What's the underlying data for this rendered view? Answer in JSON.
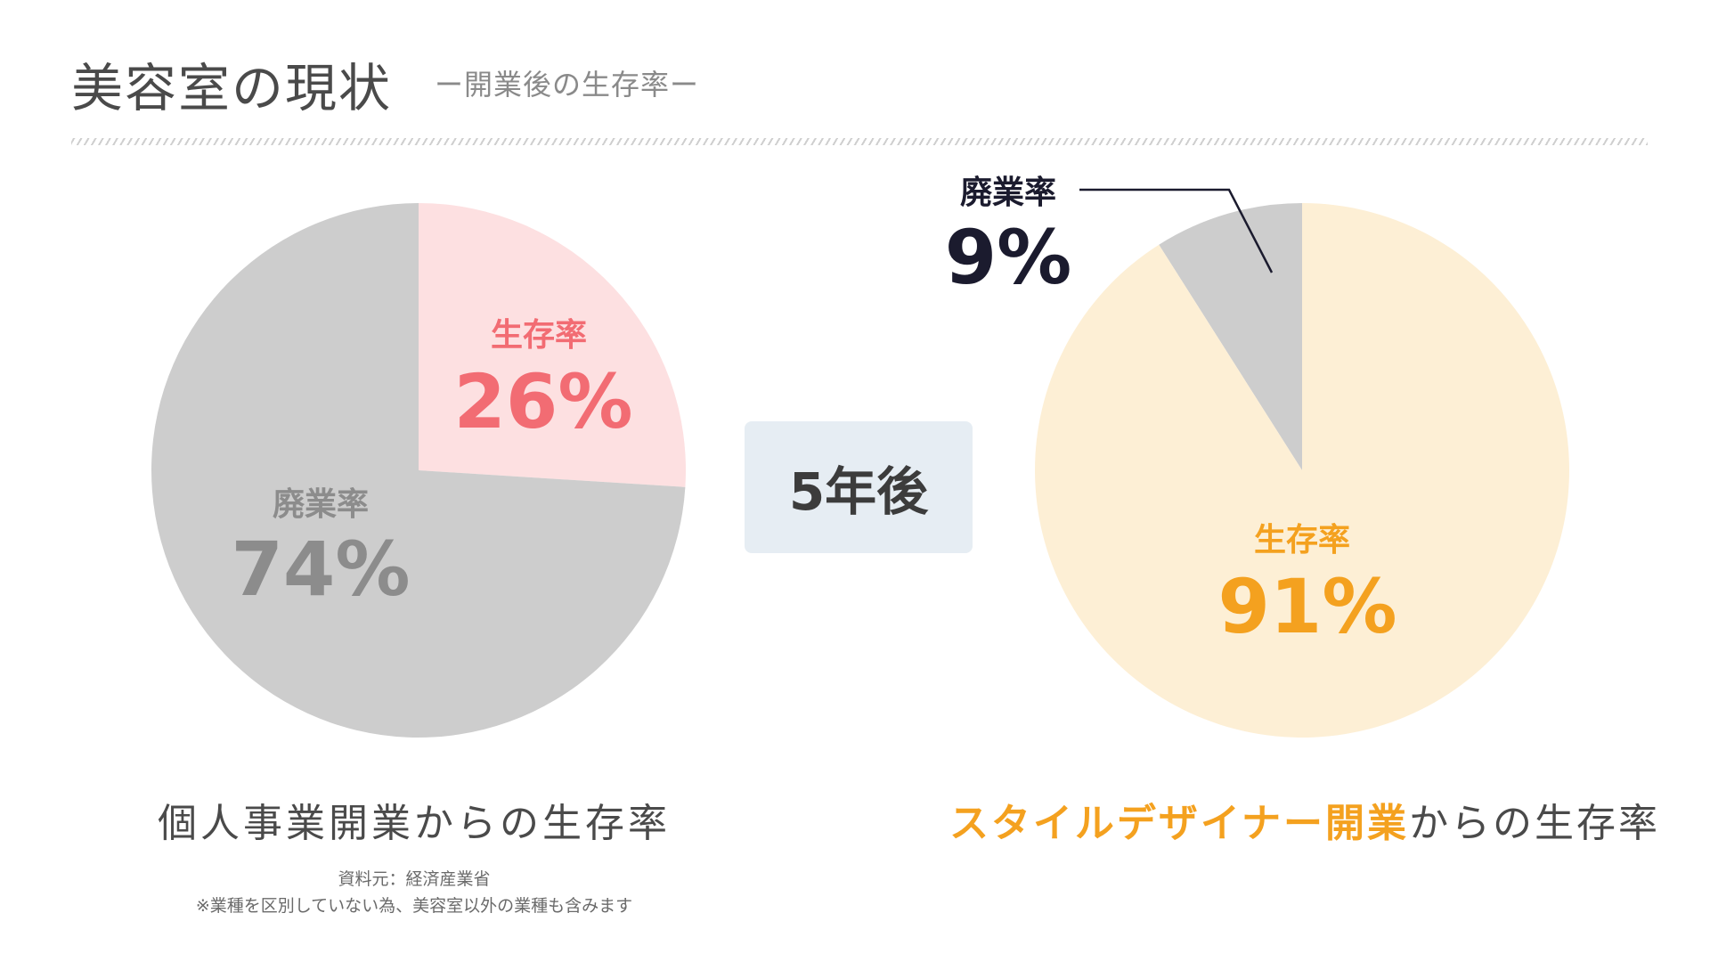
{
  "header": {
    "title": "美容室の現状",
    "subtitle": "ー開業後の生存率ー"
  },
  "middle_label": "5年後",
  "captions": {
    "left": "個人事業開業からの生存率",
    "right_accent": "スタイルデザイナー開業",
    "right_rest": "からの生存率"
  },
  "source": {
    "line1": "資料元：経済産業省",
    "line2": "※業種を区別していない為、美容室以外の業種も含みます"
  },
  "colors": {
    "survival_left": "#fde0e1",
    "survival_left_text": "#f26c73",
    "closure": "#cdcdcd",
    "closure_text": "#8c8c8c",
    "survival_right": "#fdefd5",
    "survival_right_text": "#f4a11f",
    "dark_text": "#1b1b2e"
  },
  "chart_data": [
    {
      "type": "pie",
      "title": "",
      "slices": [
        {
          "label": "生存率",
          "value": 26,
          "display": "26%"
        },
        {
          "label": "廃業率",
          "value": 74,
          "display": "74%"
        }
      ]
    },
    {
      "type": "pie",
      "title": "",
      "slices": [
        {
          "label": "廃業率",
          "value": 9,
          "display": "9%"
        },
        {
          "label": "生存率",
          "value": 91,
          "display": "91%"
        }
      ]
    }
  ]
}
